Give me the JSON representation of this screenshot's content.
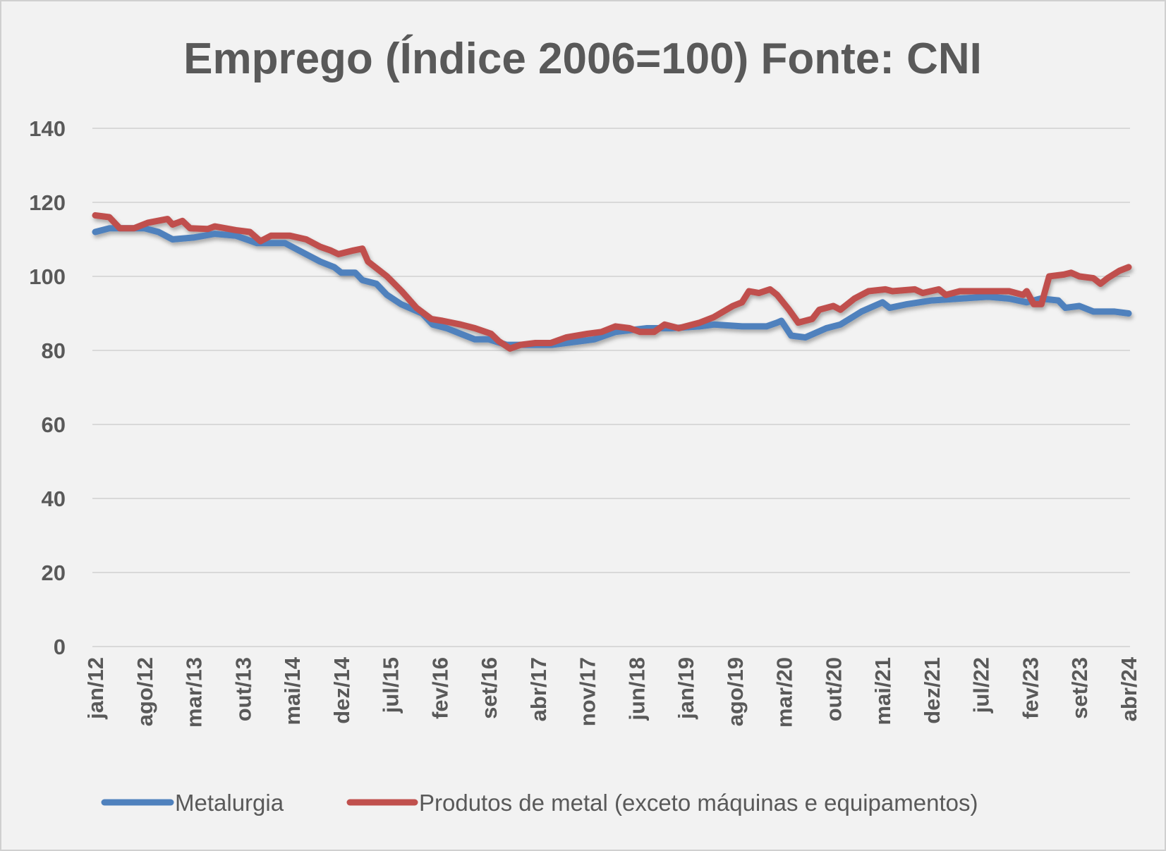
{
  "chart_data": {
    "type": "line",
    "title": "Emprego (Índice 2006=100) Fonte: CNI",
    "xlabel": "",
    "ylabel": "",
    "ylim": [
      0,
      140
    ],
    "yticks": [
      0,
      20,
      40,
      60,
      80,
      100,
      120,
      140
    ],
    "x_unit": "month index from jan/12",
    "x_range": [
      0,
      147
    ],
    "xtick_labels": [
      "jan/12",
      "ago/12",
      "mar/13",
      "out/13",
      "mai/14",
      "dez/14",
      "jul/15",
      "fev/16",
      "set/16",
      "abr/17",
      "nov/17",
      "jun/18",
      "jan/19",
      "ago/19",
      "mar/20",
      "out/20",
      "mai/21",
      "dez/21",
      "jul/22",
      "fev/23",
      "set/23",
      "abr/24"
    ],
    "xtick_step_months": 7,
    "grid": true,
    "legend_position": "bottom",
    "series": [
      {
        "name": "Metalurgia",
        "color": "#4f81bd",
        "points": [
          [
            0,
            112
          ],
          [
            2,
            113
          ],
          [
            7,
            113
          ],
          [
            9,
            112
          ],
          [
            11,
            110
          ],
          [
            14,
            110.5
          ],
          [
            17,
            111.5
          ],
          [
            20,
            111
          ],
          [
            23,
            109
          ],
          [
            27,
            109
          ],
          [
            29,
            107
          ],
          [
            32,
            104
          ],
          [
            34,
            102.5
          ],
          [
            35,
            101
          ],
          [
            37,
            101
          ],
          [
            38,
            99
          ],
          [
            40,
            98
          ],
          [
            41.5,
            95
          ],
          [
            43.5,
            92.5
          ],
          [
            46.5,
            90
          ],
          [
            48,
            87
          ],
          [
            50,
            86
          ],
          [
            52,
            84.5
          ],
          [
            54,
            83
          ],
          [
            56,
            83
          ],
          [
            58.5,
            81.5
          ],
          [
            61,
            81.5
          ],
          [
            65,
            81.5
          ],
          [
            69,
            82.5
          ],
          [
            71,
            83
          ],
          [
            74,
            85
          ],
          [
            78.5,
            86
          ],
          [
            82,
            86
          ],
          [
            86,
            86.5
          ],
          [
            88,
            87
          ],
          [
            92,
            86.5
          ],
          [
            95.5,
            86.5
          ],
          [
            97,
            87.5
          ],
          [
            97.6,
            88
          ],
          [
            99,
            84
          ],
          [
            101,
            83.5
          ],
          [
            104,
            86
          ],
          [
            106,
            87
          ],
          [
            109,
            90.5
          ],
          [
            112,
            93
          ],
          [
            113,
            91.5
          ],
          [
            115.5,
            92.5
          ],
          [
            119,
            93.5
          ],
          [
            123,
            94
          ],
          [
            127,
            94.5
          ],
          [
            130,
            94
          ],
          [
            132.5,
            93
          ],
          [
            134.5,
            94
          ],
          [
            137,
            93.5
          ],
          [
            138,
            91.5
          ],
          [
            140,
            92
          ],
          [
            142,
            90.5
          ],
          [
            145,
            90.5
          ],
          [
            147,
            90
          ]
        ]
      },
      {
        "name": "Produtos de metal (exceto máquinas e equipamentos)",
        "color": "#c0504d",
        "points": [
          [
            0,
            116.5
          ],
          [
            2,
            116
          ],
          [
            3.5,
            113
          ],
          [
            5.5,
            113
          ],
          [
            7.5,
            114.5
          ],
          [
            10.3,
            115.5
          ],
          [
            11,
            114
          ],
          [
            12.4,
            115
          ],
          [
            13.5,
            113
          ],
          [
            16,
            112.8
          ],
          [
            17,
            113.5
          ],
          [
            20,
            112.5
          ],
          [
            22,
            112
          ],
          [
            23.5,
            109.5
          ],
          [
            25,
            111
          ],
          [
            27.7,
            111
          ],
          [
            30,
            110
          ],
          [
            32,
            108
          ],
          [
            33.5,
            107
          ],
          [
            34.6,
            106
          ],
          [
            36.7,
            107
          ],
          [
            38,
            107.5
          ],
          [
            38.8,
            104
          ],
          [
            41.5,
            100
          ],
          [
            43.6,
            96
          ],
          [
            45.7,
            91.5
          ],
          [
            47.8,
            88.5
          ],
          [
            49.4,
            88
          ],
          [
            52,
            87
          ],
          [
            54,
            86
          ],
          [
            56.3,
            84.5
          ],
          [
            57.4,
            82.5
          ],
          [
            59,
            80.5
          ],
          [
            60.5,
            81.5
          ],
          [
            62.6,
            82
          ],
          [
            64.8,
            82
          ],
          [
            67,
            83.5
          ],
          [
            70,
            84.5
          ],
          [
            72,
            85
          ],
          [
            74,
            86.5
          ],
          [
            76,
            86
          ],
          [
            77.5,
            85
          ],
          [
            79.5,
            85
          ],
          [
            81,
            87
          ],
          [
            83,
            86
          ],
          [
            86,
            87.5
          ],
          [
            88,
            89
          ],
          [
            90.7,
            92
          ],
          [
            92,
            93
          ],
          [
            93,
            96
          ],
          [
            94.4,
            95.5
          ],
          [
            96,
            96.5
          ],
          [
            97,
            95
          ],
          [
            98.7,
            91
          ],
          [
            100,
            87.5
          ],
          [
            102,
            88.5
          ],
          [
            103,
            91
          ],
          [
            105,
            92
          ],
          [
            106,
            91
          ],
          [
            108,
            94
          ],
          [
            110,
            96
          ],
          [
            112.4,
            96.5
          ],
          [
            113.4,
            96
          ],
          [
            116.6,
            96.5
          ],
          [
            117.7,
            95.5
          ],
          [
            120,
            96.5
          ],
          [
            121,
            95
          ],
          [
            123,
            96
          ],
          [
            128,
            96
          ],
          [
            130,
            96
          ],
          [
            132,
            95
          ],
          [
            132.5,
            96
          ],
          [
            133.5,
            92.5
          ],
          [
            134.6,
            92.5
          ],
          [
            135.7,
            100
          ],
          [
            137.8,
            100.5
          ],
          [
            138.8,
            101
          ],
          [
            140,
            100
          ],
          [
            142,
            99.5
          ],
          [
            143,
            98
          ],
          [
            144,
            99.5
          ],
          [
            145.7,
            101.5
          ],
          [
            147,
            102.5
          ]
        ]
      }
    ]
  }
}
